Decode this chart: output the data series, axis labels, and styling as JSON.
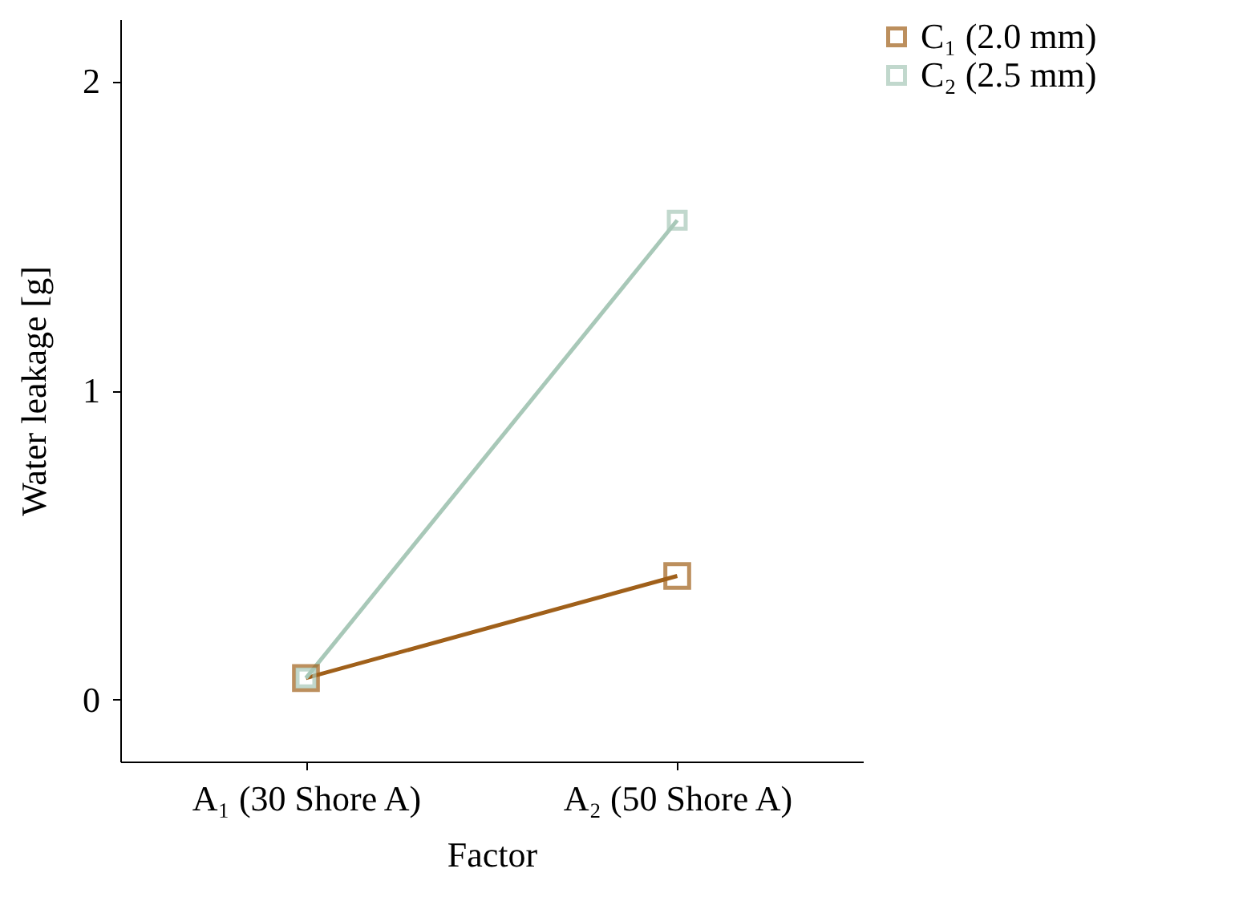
{
  "chart_data": {
    "type": "line",
    "xlabel": "Factor",
    "ylabel": "Water leakage [g]",
    "categories": [
      "A₁ (30 Shore A)",
      "A₂ (50 Shore A)"
    ],
    "series": [
      {
        "name": "C₁ (2.0 mm)",
        "color": "#a0601a",
        "values": [
          0.07,
          0.4
        ]
      },
      {
        "name": "C₂ (2.5 mm)",
        "color": "#a8c8b8",
        "values": [
          0.07,
          1.55
        ]
      }
    ],
    "ylim": [
      -0.2,
      2.2
    ],
    "yticks": [
      0,
      1,
      2
    ],
    "legend": "right",
    "marker": "square",
    "grid": false
  }
}
